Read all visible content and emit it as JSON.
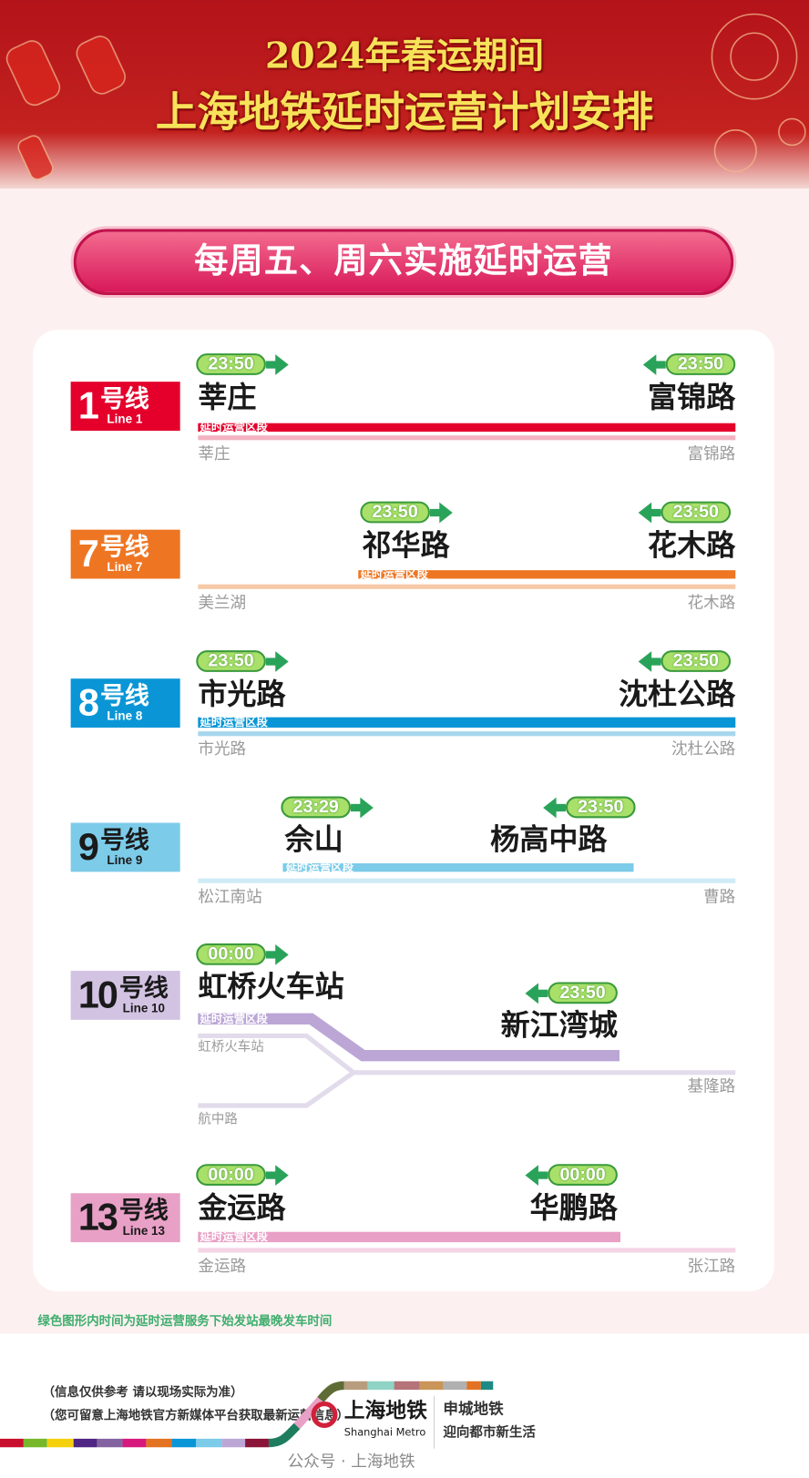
{
  "header": {
    "title_line1": "2024年春运期间",
    "title_line2": "上海地铁延时运营计划安排"
  },
  "banner_pill": "每周五、周六实施延时运营",
  "segment_label": "延时运营区段",
  "lines": [
    {
      "num": "1",
      "zh": "号线",
      "en": "Line 1",
      "color": "#e4002b",
      "light": "#f3b3c0",
      "from": "莘庄",
      "from_time": "23:50",
      "to": "富锦路",
      "to_time": "23:50",
      "term_a": "莘庄",
      "term_b": "富锦路"
    },
    {
      "num": "7",
      "zh": "号线",
      "en": "Line 7",
      "color": "#ee7623",
      "light": "#f7c9a8",
      "from": "祁华路",
      "from_time": "23:50",
      "to": "花木路",
      "to_time": "23:50",
      "term_a": "美兰湖",
      "term_b": "花木路"
    },
    {
      "num": "8",
      "zh": "号线",
      "en": "Line 8",
      "color": "#0a96d6",
      "light": "#a7d6ee",
      "from": "市光路",
      "from_time": "23:50",
      "to": "沈杜公路",
      "to_time": "23:50",
      "term_a": "市光路",
      "term_b": "沈杜公路"
    },
    {
      "num": "9",
      "zh": "号线",
      "en": "Line 9",
      "color": "#7ccbe9",
      "light": "#cfebf6",
      "from": "佘山",
      "from_time": "23:29",
      "to": "杨高中路",
      "to_time": "23:50",
      "term_a": "松江南站",
      "term_b": "曹路"
    },
    {
      "num": "10",
      "zh": "号线",
      "en": "Line 10",
      "color": "#bba6d6",
      "light": "#e2dbeb",
      "from": "虹桥火车站",
      "from_time": "00:00",
      "to": "新江湾城",
      "to_time": "23:50",
      "term_a": "虹桥火车站",
      "term_b": "基隆路",
      "term_c": "航中路"
    },
    {
      "num": "13",
      "zh": "号线",
      "en": "Line 13",
      "color": "#e8a0c6",
      "light": "#f4d5e6",
      "from": "金运路",
      "from_time": "00:00",
      "to": "华鹏路",
      "to_time": "00:00",
      "term_a": "金运路",
      "term_b": "张江路"
    }
  ],
  "note": "绿色图形内时间为延时运营服务下始发站最晚发车时间",
  "footer": {
    "disclaimer1": "（信息仅供参考 请以现场实际为准）",
    "disclaimer2": "（您可留意上海地铁官方新媒体平台获取最新运营信息）",
    "logo_zh": "上海地铁",
    "logo_en": "Shanghai Metro",
    "slogan_a": "申城地铁",
    "slogan_b": "迎向都市新生活",
    "watermark": "公众号 · 上海地铁"
  },
  "colors": {
    "pill_green": "#a8e06a",
    "arrow_green": "#2aa35a",
    "banner_red": "#c4221f",
    "title_gold": "#f7e25a"
  }
}
